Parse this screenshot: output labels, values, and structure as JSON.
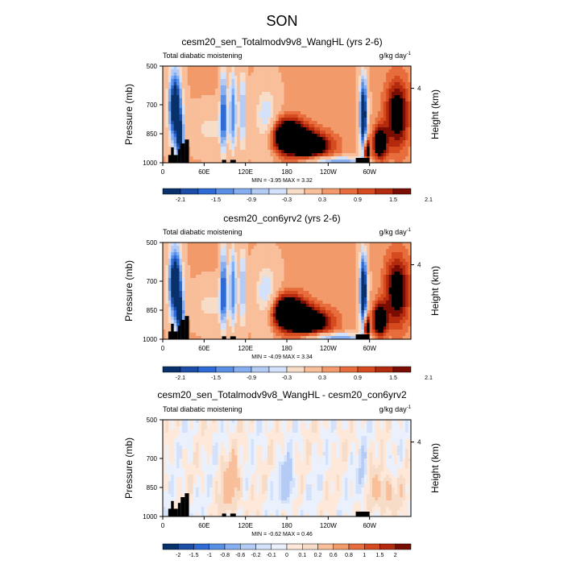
{
  "figure_title": "SON",
  "colors": {
    "palette_a": [
      "#08306b",
      "#1b4ea6",
      "#2f6bd6",
      "#5a8fe6",
      "#86aef0",
      "#b3cbf5",
      "#d3e2fa",
      "#f7dcc8",
      "#f8bf9a",
      "#f39a6b",
      "#e86d3c",
      "#d54a1f",
      "#b32a0e",
      "#7a0d03"
    ],
    "palette_b": [
      "#08306b",
      "#1b4ea6",
      "#2f6bd6",
      "#5a8fe6",
      "#86aef0",
      "#b3cbf5",
      "#d3e2fa",
      "#eaf1fc",
      "#fde8da",
      "#f7dcc8",
      "#f8bf9a",
      "#f39a6b",
      "#e86d3c",
      "#d54a1f",
      "#b32a0e",
      "#7a0d03"
    ]
  },
  "chart_data": [
    {
      "type": "heatmap",
      "title": "cesm20_sen_Totalmodv9v8_WangHL (yrs 2-6)",
      "left_label": "Total diabatic moistening",
      "units_base": "g/kg day",
      "units_exp": "-1",
      "ylabel": "Pressure (mb)",
      "ylabel_right": "Height (km)",
      "yticks": [
        "500",
        "700",
        "850",
        "1000"
      ],
      "ytick_values": [
        500,
        700,
        850,
        1000
      ],
      "right_tick": "4",
      "right_tick_pressure": 615,
      "xticks": [
        "0",
        "60E",
        "120E",
        "180",
        "120W",
        "60W"
      ],
      "xtick_values": [
        0,
        60,
        120,
        180,
        240,
        300
      ],
      "xlim": [
        0,
        360
      ],
      "ylim": [
        1000,
        500
      ],
      "stats": "MIN =  -3.95  MAX =   3.32",
      "colorbar_labels": [
        "-2.1",
        "-1.5",
        "-0.9",
        "-0.3",
        "0.3",
        "0.9",
        "1.5",
        "2.1"
      ],
      "palette": "palette_a",
      "field_scale": 1.0
    },
    {
      "type": "heatmap",
      "title": "cesm20_con6yrv2 (yrs 2-6)",
      "left_label": "Total diabatic moistening",
      "units_base": "g/kg day",
      "units_exp": "-1",
      "ylabel": "Pressure (mb)",
      "ylabel_right": "Height (km)",
      "yticks": [
        "500",
        "700",
        "850",
        "1000"
      ],
      "ytick_values": [
        500,
        700,
        850,
        1000
      ],
      "right_tick": "4",
      "right_tick_pressure": 615,
      "xticks": [
        "0",
        "60E",
        "120E",
        "180",
        "120W",
        "60W"
      ],
      "xtick_values": [
        0,
        60,
        120,
        180,
        240,
        300
      ],
      "xlim": [
        0,
        360
      ],
      "ylim": [
        1000,
        500
      ],
      "stats": "MIN =  -4.09  MAX =   3.34",
      "colorbar_labels": [
        "-2.1",
        "-1.5",
        "-0.9",
        "-0.3",
        "0.3",
        "0.9",
        "1.5",
        "2.1"
      ],
      "palette": "palette_a",
      "field_scale": 1.0
    },
    {
      "type": "heatmap",
      "title": "cesm20_sen_Totalmodv9v8_WangHL - cesm20_con6yrv2",
      "left_label": "Total diabatic moistening",
      "units_base": "g/kg day",
      "units_exp": "-1",
      "ylabel": "Pressure (mb)",
      "ylabel_right": "Height (km)",
      "yticks": [
        "500",
        "700",
        "850",
        "1000"
      ],
      "ytick_values": [
        500,
        700,
        850,
        1000
      ],
      "right_tick": "4",
      "right_tick_pressure": 615,
      "xticks": [
        "0",
        "60E",
        "120E",
        "180",
        "120W",
        "60W"
      ],
      "xtick_values": [
        0,
        60,
        120,
        180,
        240,
        300
      ],
      "xlim": [
        0,
        360
      ],
      "ylim": [
        1000,
        500
      ],
      "stats": "MIN =  -0.62  MAX =   0.46",
      "colorbar_labels": [
        "-2",
        "-1.5",
        "-1",
        "-0.8",
        "-0.6",
        "-0.2",
        "-0.1",
        "0",
        "0.1",
        "0.2",
        "0.6",
        "0.8",
        "1",
        "1.5",
        "2"
      ],
      "palette": "palette_b",
      "field_scale": 0.18
    }
  ]
}
